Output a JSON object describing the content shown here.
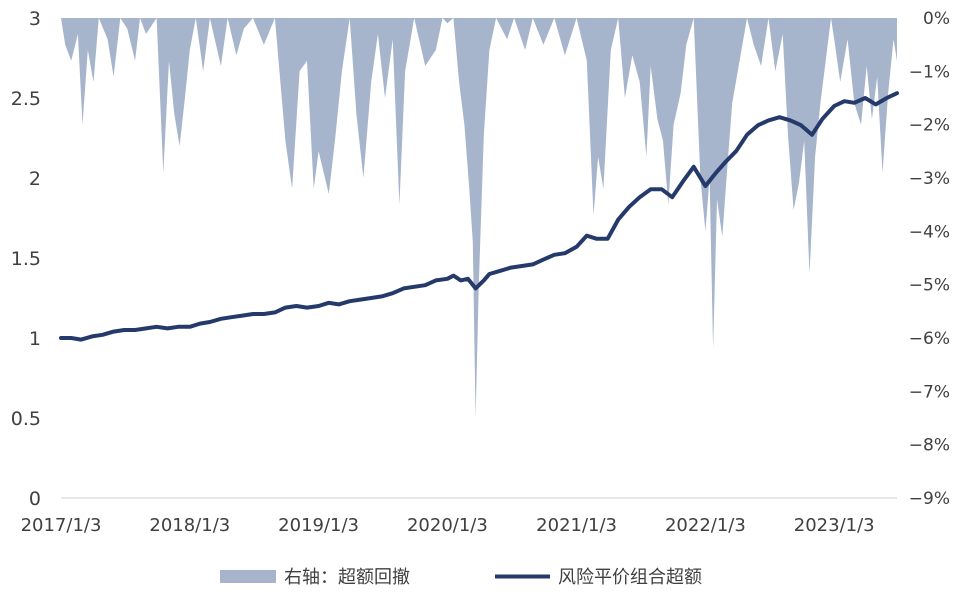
{
  "chart_data": {
    "type": "line",
    "title": "",
    "x_axis": {
      "tick_labels": [
        "2017/1/3",
        "2018/1/3",
        "2019/1/3",
        "2020/1/3",
        "2021/1/3",
        "2022/1/3",
        "2023/1/3"
      ],
      "range": [
        "2017-01-03",
        "2023-06-30"
      ]
    },
    "y_left": {
      "ylim": [
        0,
        3
      ],
      "tick_labels": [
        "3",
        "2.5",
        "2",
        "1.5",
        "1",
        "0.5",
        "0"
      ],
      "tick_values": [
        3,
        2.5,
        2,
        1.5,
        1,
        0.5,
        0
      ]
    },
    "y_right": {
      "ylim": [
        -9,
        0
      ],
      "unit": "%",
      "tick_labels": [
        "0%",
        "−1%",
        "−2%",
        "−3%",
        "−4%",
        "−5%",
        "−6%",
        "−7%",
        "−8%",
        "−9%"
      ],
      "tick_values": [
        0,
        -1,
        -2,
        -3,
        -4,
        -5,
        -6,
        -7,
        -8,
        -9
      ]
    },
    "legend": {
      "position": "bottom",
      "items": [
        {
          "label": "右轴：超额回撤",
          "symbol": "area",
          "color": "#a6b4cc"
        },
        {
          "label": "风险平价组合超额",
          "symbol": "line",
          "color": "#253a6b"
        }
      ]
    },
    "series": [
      {
        "name": "风险平价组合超额",
        "axis": "left",
        "kind": "line",
        "color": "#253a6b",
        "points": [
          [
            "2017-01-03",
            1.0
          ],
          [
            "2017-02-01",
            1.0
          ],
          [
            "2017-03-01",
            0.99
          ],
          [
            "2017-04-01",
            1.01
          ],
          [
            "2017-05-01",
            1.02
          ],
          [
            "2017-06-01",
            1.04
          ],
          [
            "2017-07-01",
            1.05
          ],
          [
            "2017-08-01",
            1.05
          ],
          [
            "2017-09-01",
            1.06
          ],
          [
            "2017-10-01",
            1.07
          ],
          [
            "2017-11-01",
            1.06
          ],
          [
            "2017-12-01",
            1.07
          ],
          [
            "2018-01-03",
            1.07
          ],
          [
            "2018-02-01",
            1.09
          ],
          [
            "2018-03-01",
            1.1
          ],
          [
            "2018-04-01",
            1.12
          ],
          [
            "2018-05-01",
            1.13
          ],
          [
            "2018-06-01",
            1.14
          ],
          [
            "2018-07-01",
            1.15
          ],
          [
            "2018-08-01",
            1.15
          ],
          [
            "2018-09-01",
            1.16
          ],
          [
            "2018-10-01",
            1.19
          ],
          [
            "2018-11-01",
            1.2
          ],
          [
            "2018-12-01",
            1.19
          ],
          [
            "2019-01-03",
            1.2
          ],
          [
            "2019-02-01",
            1.22
          ],
          [
            "2019-03-01",
            1.21
          ],
          [
            "2019-04-01",
            1.23
          ],
          [
            "2019-05-01",
            1.24
          ],
          [
            "2019-06-01",
            1.25
          ],
          [
            "2019-07-01",
            1.26
          ],
          [
            "2019-08-01",
            1.28
          ],
          [
            "2019-09-01",
            1.31
          ],
          [
            "2019-10-01",
            1.32
          ],
          [
            "2019-11-01",
            1.33
          ],
          [
            "2019-12-01",
            1.36
          ],
          [
            "2020-01-03",
            1.37
          ],
          [
            "2020-01-20",
            1.39
          ],
          [
            "2020-02-10",
            1.36
          ],
          [
            "2020-03-01",
            1.37
          ],
          [
            "2020-03-23",
            1.31
          ],
          [
            "2020-04-15",
            1.36
          ],
          [
            "2020-05-01",
            1.4
          ],
          [
            "2020-06-01",
            1.42
          ],
          [
            "2020-07-01",
            1.44
          ],
          [
            "2020-08-01",
            1.45
          ],
          [
            "2020-09-01",
            1.46
          ],
          [
            "2020-10-01",
            1.49
          ],
          [
            "2020-11-01",
            1.52
          ],
          [
            "2020-12-01",
            1.53
          ],
          [
            "2021-01-03",
            1.57
          ],
          [
            "2021-02-01",
            1.64
          ],
          [
            "2021-03-01",
            1.62
          ],
          [
            "2021-04-01",
            1.62
          ],
          [
            "2021-05-01",
            1.74
          ],
          [
            "2021-06-01",
            1.82
          ],
          [
            "2021-07-01",
            1.88
          ],
          [
            "2021-08-01",
            1.93
          ],
          [
            "2021-09-01",
            1.93
          ],
          [
            "2021-10-01",
            1.88
          ],
          [
            "2021-11-01",
            1.98
          ],
          [
            "2021-12-01",
            2.07
          ],
          [
            "2022-01-03",
            1.95
          ],
          [
            "2022-02-01",
            2.03
          ],
          [
            "2022-03-01",
            2.1
          ],
          [
            "2022-04-01",
            2.17
          ],
          [
            "2022-05-01",
            2.27
          ],
          [
            "2022-06-01",
            2.33
          ],
          [
            "2022-07-01",
            2.36
          ],
          [
            "2022-08-01",
            2.38
          ],
          [
            "2022-09-01",
            2.36
          ],
          [
            "2022-10-01",
            2.33
          ],
          [
            "2022-11-01",
            2.27
          ],
          [
            "2022-12-01",
            2.37
          ],
          [
            "2023-01-03",
            2.45
          ],
          [
            "2023-02-01",
            2.48
          ],
          [
            "2023-03-01",
            2.47
          ],
          [
            "2023-04-01",
            2.5
          ],
          [
            "2023-05-01",
            2.46
          ],
          [
            "2023-06-01",
            2.5
          ],
          [
            "2023-06-30",
            2.53
          ]
        ]
      },
      {
        "name": "右轴：超额回撤",
        "axis": "right",
        "kind": "area",
        "color": "#a6b4cc",
        "unit": "%",
        "points": [
          [
            "2017-01-03",
            0.0
          ],
          [
            "2017-01-15",
            -0.5
          ],
          [
            "2017-02-01",
            -0.8
          ],
          [
            "2017-02-20",
            -0.3
          ],
          [
            "2017-03-05",
            -2.0
          ],
          [
            "2017-03-20",
            -0.6
          ],
          [
            "2017-04-05",
            -1.2
          ],
          [
            "2017-04-20",
            0.0
          ],
          [
            "2017-05-15",
            -0.4
          ],
          [
            "2017-06-01",
            -1.1
          ],
          [
            "2017-06-20",
            0.0
          ],
          [
            "2017-07-10",
            -0.2
          ],
          [
            "2017-08-01",
            -0.8
          ],
          [
            "2017-08-15",
            0.0
          ],
          [
            "2017-09-01",
            -0.3
          ],
          [
            "2017-10-01",
            0.0
          ],
          [
            "2017-10-20",
            -2.9
          ],
          [
            "2017-11-05",
            -0.8
          ],
          [
            "2017-11-20",
            -1.8
          ],
          [
            "2017-12-05",
            -2.4
          ],
          [
            "2017-12-20",
            -1.5
          ],
          [
            "2018-01-03",
            -0.6
          ],
          [
            "2018-01-20",
            0.0
          ],
          [
            "2018-02-10",
            -1.0
          ],
          [
            "2018-03-01",
            0.0
          ],
          [
            "2018-04-01",
            -0.9
          ],
          [
            "2018-04-20",
            0.0
          ],
          [
            "2018-05-15",
            -0.7
          ],
          [
            "2018-06-05",
            -0.2
          ],
          [
            "2018-07-01",
            0.0
          ],
          [
            "2018-08-01",
            -0.5
          ],
          [
            "2018-09-01",
            0.0
          ],
          [
            "2018-10-01",
            -2.3
          ],
          [
            "2018-10-20",
            -3.2
          ],
          [
            "2018-11-10",
            -1.0
          ],
          [
            "2018-12-01",
            -0.8
          ],
          [
            "2018-12-20",
            -3.2
          ],
          [
            "2019-01-03",
            -2.5
          ],
          [
            "2019-02-01",
            -3.3
          ],
          [
            "2019-02-20",
            -2.2
          ],
          [
            "2019-03-10",
            -1.0
          ],
          [
            "2019-04-01",
            0.0
          ],
          [
            "2019-04-20",
            -1.8
          ],
          [
            "2019-05-10",
            -3.0
          ],
          [
            "2019-06-01",
            -1.2
          ],
          [
            "2019-06-20",
            -0.3
          ],
          [
            "2019-07-10",
            -1.5
          ],
          [
            "2019-08-01",
            -0.4
          ],
          [
            "2019-08-20",
            -3.5
          ],
          [
            "2019-09-05",
            -1.0
          ],
          [
            "2019-10-01",
            0.0
          ],
          [
            "2019-11-01",
            -0.9
          ],
          [
            "2019-12-01",
            -0.6
          ],
          [
            "2019-12-20",
            0.0
          ],
          [
            "2020-01-03",
            -0.1
          ],
          [
            "2020-01-20",
            0.0
          ],
          [
            "2020-02-05",
            -1.2
          ],
          [
            "2020-02-20",
            -2.0
          ],
          [
            "2020-03-05",
            -3.2
          ],
          [
            "2020-03-15",
            -4.2
          ],
          [
            "2020-03-23",
            -7.5
          ],
          [
            "2020-04-01",
            -5.0
          ],
          [
            "2020-04-15",
            -2.2
          ],
          [
            "2020-05-01",
            -0.6
          ],
          [
            "2020-05-20",
            0.0
          ],
          [
            "2020-06-20",
            -0.4
          ],
          [
            "2020-07-10",
            0.0
          ],
          [
            "2020-08-10",
            -0.6
          ],
          [
            "2020-09-01",
            0.0
          ],
          [
            "2020-10-01",
            -0.5
          ],
          [
            "2020-11-01",
            0.0
          ],
          [
            "2020-12-01",
            -0.7
          ],
          [
            "2021-01-03",
            0.0
          ],
          [
            "2021-02-01",
            -0.8
          ],
          [
            "2021-02-20",
            -3.7
          ],
          [
            "2021-03-05",
            -2.6
          ],
          [
            "2021-03-20",
            -3.2
          ],
          [
            "2021-04-10",
            -0.6
          ],
          [
            "2021-05-01",
            0.0
          ],
          [
            "2021-05-20",
            -1.5
          ],
          [
            "2021-06-10",
            -0.7
          ],
          [
            "2021-07-01",
            -1.2
          ],
          [
            "2021-07-20",
            -2.6
          ],
          [
            "2021-08-01",
            -0.9
          ],
          [
            "2021-08-20",
            -1.9
          ],
          [
            "2021-09-05",
            -2.3
          ],
          [
            "2021-09-20",
            -3.5
          ],
          [
            "2021-10-05",
            -2.0
          ],
          [
            "2021-10-25",
            -1.4
          ],
          [
            "2021-11-10",
            -0.5
          ],
          [
            "2021-12-01",
            0.0
          ],
          [
            "2021-12-20",
            -3.0
          ],
          [
            "2022-01-03",
            -4.0
          ],
          [
            "2022-01-15",
            -3.0
          ],
          [
            "2022-01-25",
            -6.2
          ],
          [
            "2022-02-05",
            -3.4
          ],
          [
            "2022-02-20",
            -4.1
          ],
          [
            "2022-03-05",
            -2.9
          ],
          [
            "2022-03-20",
            -1.6
          ],
          [
            "2022-04-10",
            -0.8
          ],
          [
            "2022-05-01",
            0.0
          ],
          [
            "2022-05-20",
            -0.5
          ],
          [
            "2022-06-10",
            -0.9
          ],
          [
            "2022-07-01",
            0.0
          ],
          [
            "2022-07-20",
            -1.0
          ],
          [
            "2022-08-10",
            -0.3
          ],
          [
            "2022-08-25",
            -2.2
          ],
          [
            "2022-09-10",
            -3.6
          ],
          [
            "2022-09-25",
            -3.1
          ],
          [
            "2022-10-10",
            -2.3
          ],
          [
            "2022-10-25",
            -4.8
          ],
          [
            "2022-11-10",
            -2.6
          ],
          [
            "2022-11-25",
            -1.6
          ],
          [
            "2022-12-10",
            -0.8
          ],
          [
            "2022-12-25",
            0.0
          ],
          [
            "2023-01-03",
            -0.4
          ],
          [
            "2023-01-20",
            -1.2
          ],
          [
            "2023-02-10",
            -0.4
          ],
          [
            "2023-03-01",
            -1.6
          ],
          [
            "2023-03-20",
            -2.0
          ],
          [
            "2023-04-05",
            -0.9
          ],
          [
            "2023-04-20",
            -1.9
          ],
          [
            "2023-05-05",
            -1.1
          ],
          [
            "2023-05-20",
            -2.9
          ],
          [
            "2023-06-05",
            -1.4
          ],
          [
            "2023-06-20",
            -0.4
          ],
          [
            "2023-06-30",
            -0.8
          ]
        ]
      }
    ]
  }
}
